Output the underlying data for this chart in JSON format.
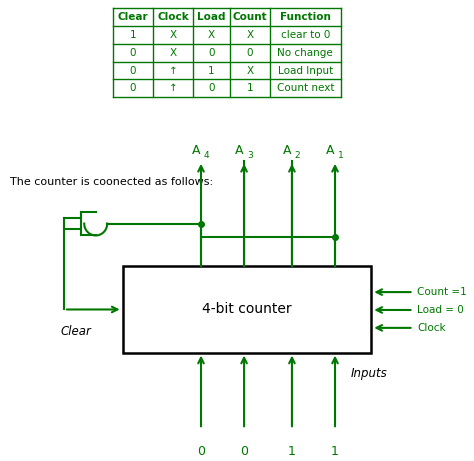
{
  "green": "#007700",
  "box_color": "#000000",
  "title_text": "The counter is coonected as follows:",
  "counter_label": "4-bit counter",
  "clear_label": "Clear",
  "inputs_label": "Inputs",
  "count_label": "Count =1",
  "load_label": "Load = 0",
  "clock_label": "Clock",
  "bottom_values": [
    "0",
    "0",
    "1",
    "1"
  ],
  "A_labels": [
    "A",
    "A",
    "A",
    "A"
  ],
  "A_subs": [
    "4",
    "3",
    "2",
    "1"
  ],
  "table_headers": [
    "Clear",
    "Clock",
    "Load",
    "Count",
    "Function"
  ],
  "table_rows": [
    [
      "1",
      "X",
      "X",
      "X",
      "clear to 0"
    ],
    [
      "0",
      "X",
      "0",
      "0",
      "No change"
    ],
    [
      "0",
      "↑",
      "1",
      "X",
      "Load Input"
    ],
    [
      "0",
      "↑",
      "0",
      "1",
      "Count next"
    ]
  ]
}
